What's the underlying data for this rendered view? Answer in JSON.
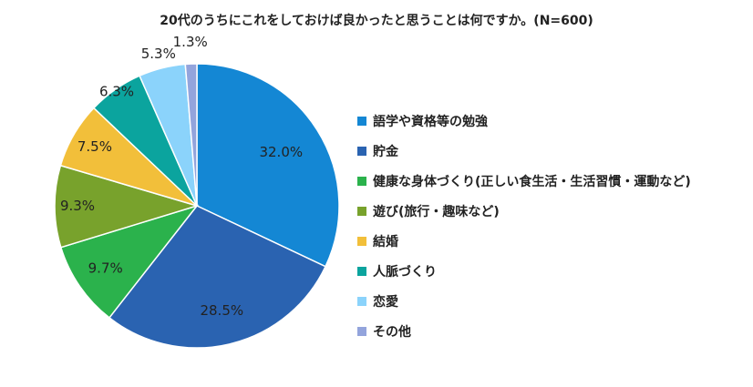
{
  "chart_data": {
    "type": "pie",
    "title": "20代のうちにこれをしておけば良かったと思うことは何ですか。(N=600)",
    "unit": "%",
    "legend_position": "right",
    "slices": [
      {
        "name": "語学や資格等の勉強",
        "value": 32.0,
        "label": "32.0%",
        "color": "#1487d4"
      },
      {
        "name": "貯金",
        "value": 28.5,
        "label": "28.5%",
        "color": "#2a63b1"
      },
      {
        "name": "健康な身体づくり(正しい食生活・生活習慣・運動など)",
        "value": 9.7,
        "label": "9.7%",
        "color": "#2bb24c"
      },
      {
        "name": "遊び(旅行・趣味など)",
        "value": 9.3,
        "label": "9.3%",
        "color": "#78a22c"
      },
      {
        "name": "結婚",
        "value": 7.5,
        "label": "7.5%",
        "color": "#f2bf3a"
      },
      {
        "name": "人脈づくり",
        "value": 6.3,
        "label": "6.3%",
        "color": "#0ba49e"
      },
      {
        "name": "恋愛",
        "value": 5.3,
        "label": "5.3%",
        "color": "#8bd3fb"
      },
      {
        "name": "その他",
        "value": 1.3,
        "label": "1.3%",
        "color": "#93a4dc"
      }
    ]
  }
}
